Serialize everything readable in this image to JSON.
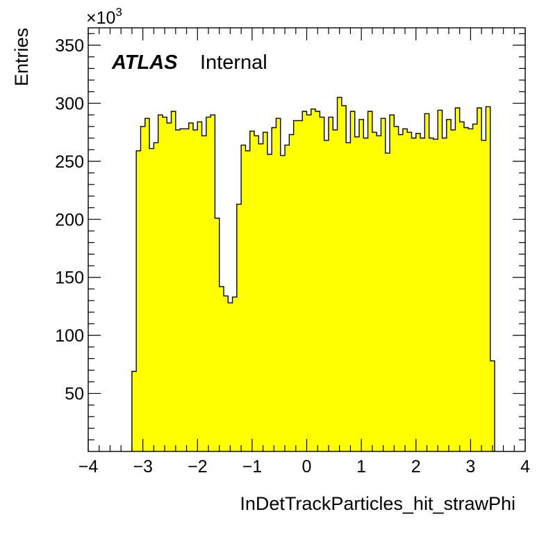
{
  "chart_data": {
    "type": "histogram",
    "xlabel": "InDetTrackParticles_hit_strawPhi",
    "ylabel": "Entries",
    "y_multiplier": "×10",
    "y_multiplier_exp": "3",
    "xlim": [
      -4,
      4
    ],
    "ylim": [
      0,
      365
    ],
    "x_ticks": [
      -4,
      -3,
      -2,
      -1,
      0,
      1,
      2,
      3,
      4
    ],
    "x_tick_labels": [
      "−4",
      "−3",
      "−2",
      "−1",
      "0",
      "1",
      "2",
      "3",
      "4"
    ],
    "y_ticks": [
      50,
      100,
      150,
      200,
      250,
      300,
      350
    ],
    "y_tick_labels": [
      "50",
      "100",
      "150",
      "200",
      "250",
      "300",
      "350"
    ],
    "fill_color": "#ffff00",
    "line_color": "#000000",
    "bin_start": -3.2,
    "bin_width": 0.08,
    "values": [
      69,
      259,
      280,
      287,
      261,
      266,
      290,
      288,
      283,
      293,
      277,
      278,
      278,
      283,
      277,
      284,
      272,
      288,
      290,
      201,
      142,
      134,
      128,
      133,
      213,
      264,
      259,
      276,
      272,
      265,
      275,
      256,
      279,
      287,
      255,
      264,
      273,
      285,
      285,
      293,
      290,
      295,
      293,
      288,
      268,
      288,
      277,
      305,
      298,
      266,
      293,
      271,
      286,
      270,
      293,
      275,
      272,
      287,
      257,
      290,
      280,
      273,
      278,
      275,
      270,
      274,
      270,
      291,
      270,
      269,
      294,
      270,
      286,
      277,
      296,
      284,
      279,
      278,
      282,
      296,
      268,
      297,
      78
    ],
    "annotations": {
      "experiment": "ATLAS",
      "status": "Internal"
    }
  }
}
